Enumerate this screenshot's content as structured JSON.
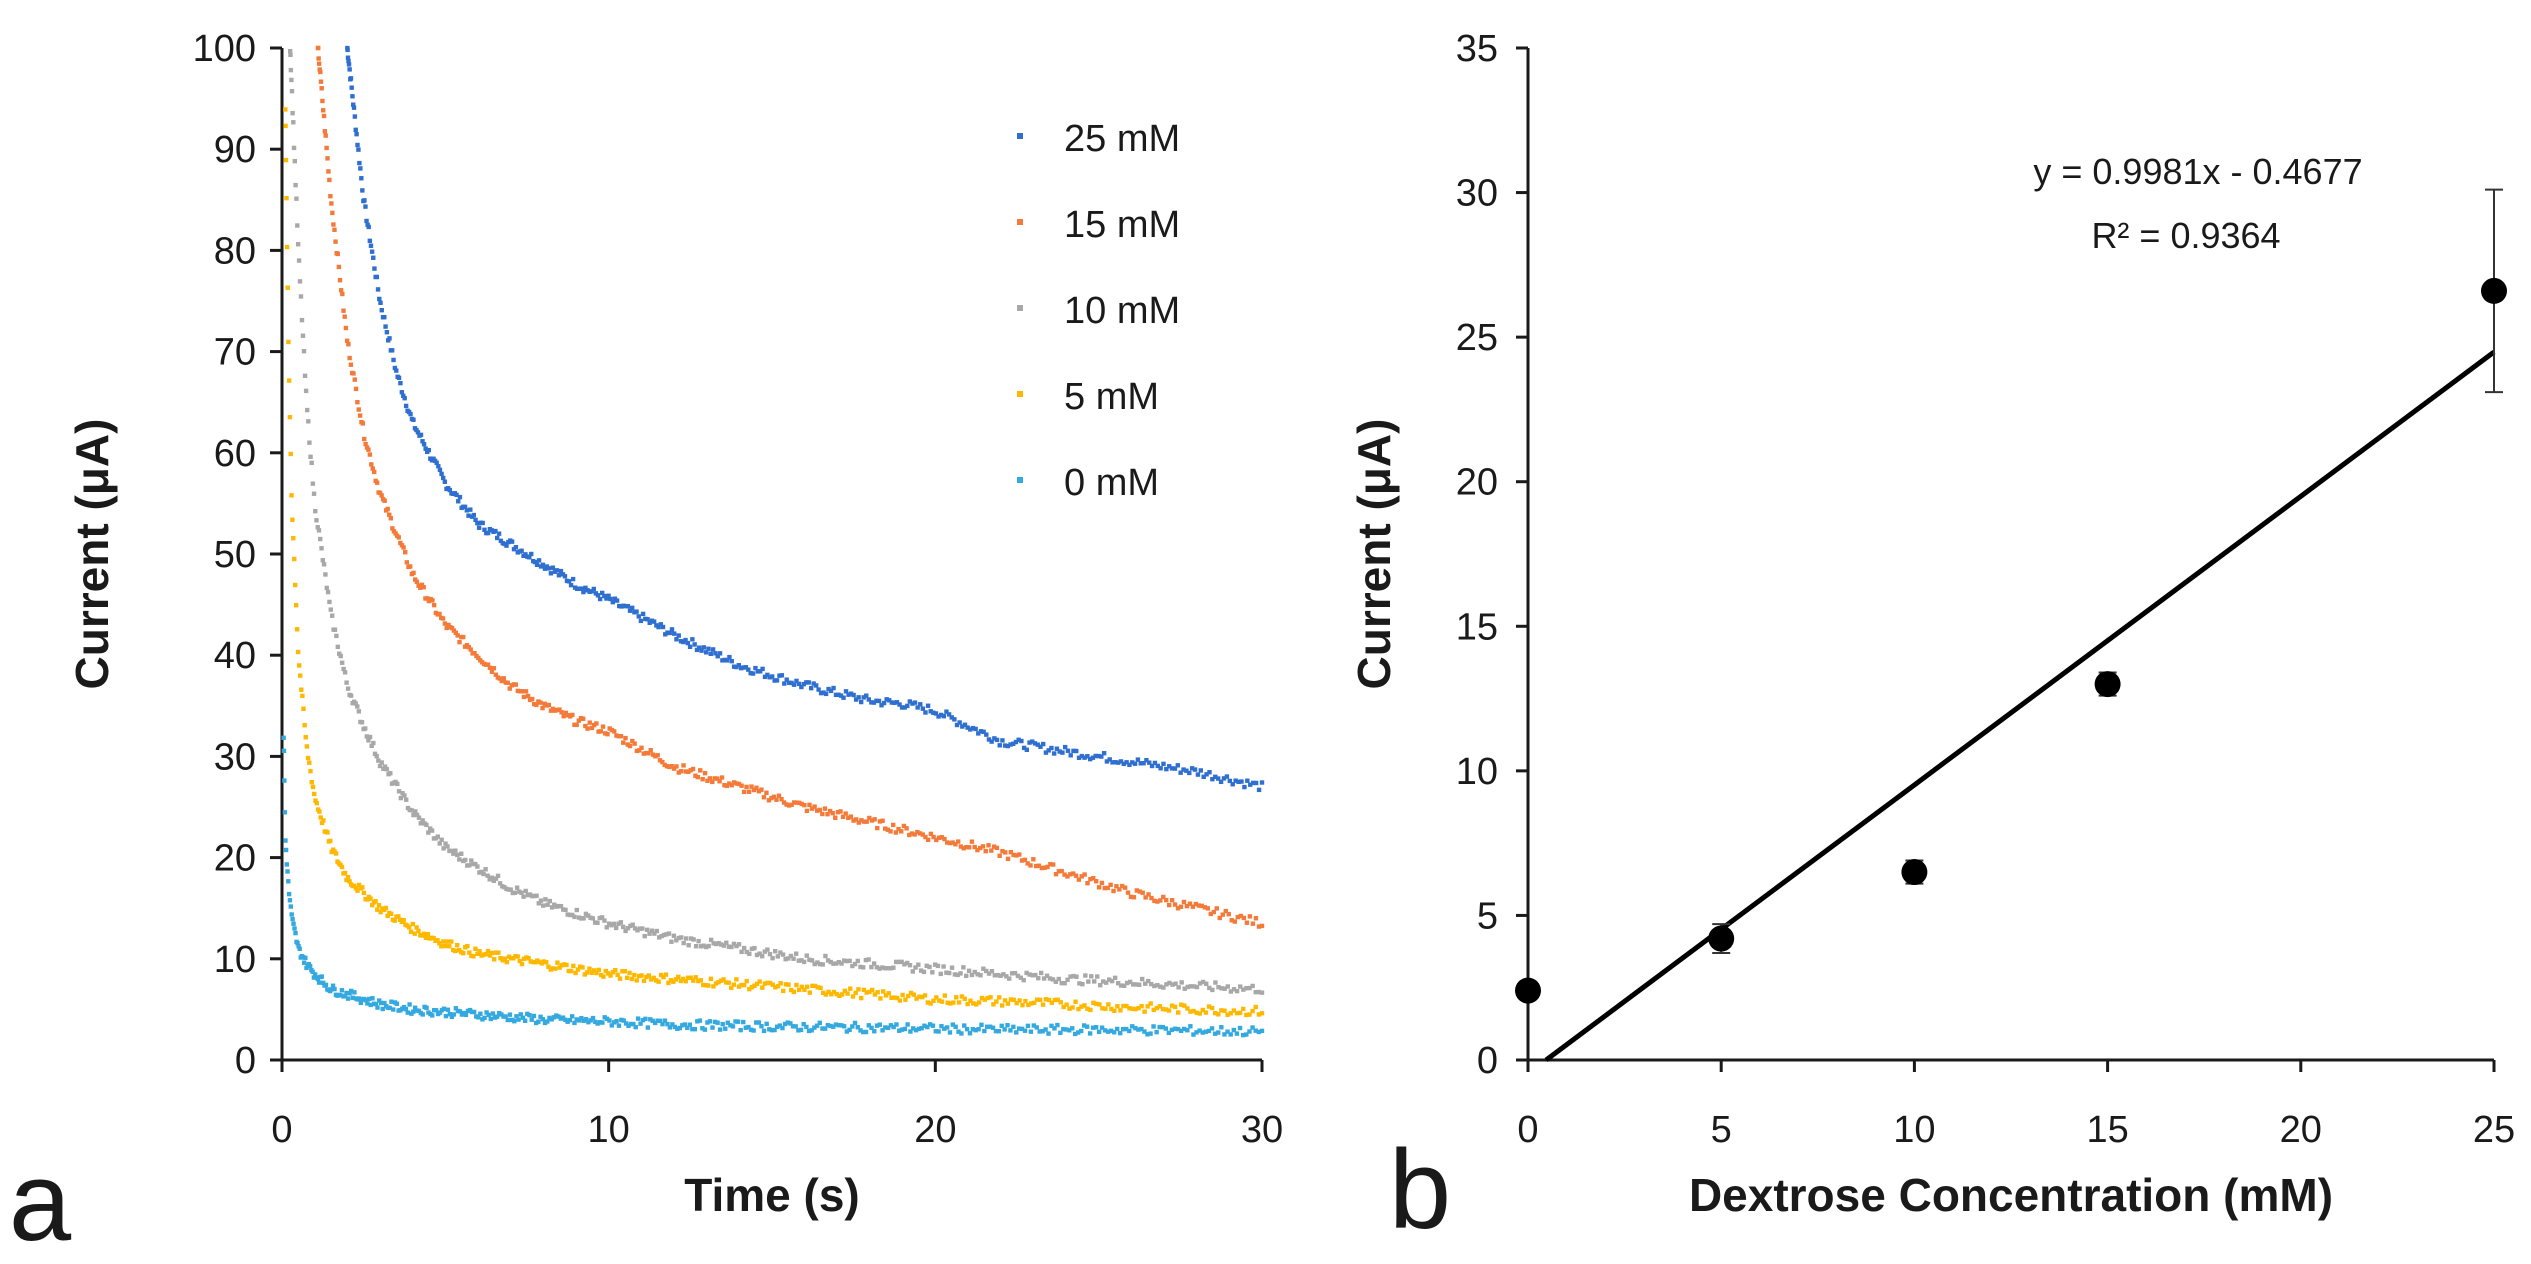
{
  "colors": {
    "s25": "#2f6fd0",
    "s15": "#f47a3a",
    "s10": "#a8a8a8",
    "s5": "#ffb800",
    "s0": "#34a9e0",
    "axis": "#1a1a1a",
    "marker": "#000000"
  },
  "chart_data": [
    {
      "type": "scatter",
      "panel_label": "a",
      "xlabel": "Time (s)",
      "ylabel": "Current (μA)",
      "xlim": [
        0,
        30
      ],
      "ylim": [
        0,
        100
      ],
      "x_ticks": [
        "0",
        "10",
        "20",
        "30"
      ],
      "y_ticks": [
        "0",
        "10",
        "20",
        "30",
        "40",
        "50",
        "60",
        "70",
        "80",
        "90",
        "100"
      ],
      "legend_position": "top-right",
      "series": [
        {
          "name": "25 mM",
          "color_key": "s25",
          "x": [
            2.0,
            2.5,
            3,
            3.5,
            4,
            5,
            6,
            7,
            8,
            9,
            10,
            12,
            14,
            16,
            18,
            19,
            20,
            22,
            24,
            26,
            28,
            30
          ],
          "values": [
            100,
            85,
            75,
            68,
            63,
            57,
            53,
            51,
            49,
            47,
            45.5,
            42,
            39,
            37,
            35.5,
            35.2,
            34.5,
            31.5,
            30.5,
            29.5,
            28.5,
            27
          ]
        },
        {
          "name": "15 mM",
          "color_key": "s15",
          "x": [
            1.1,
            1.5,
            2,
            2.5,
            3,
            4,
            5,
            6,
            7,
            8,
            9,
            10,
            12,
            14,
            16,
            18,
            20,
            22,
            24,
            26,
            28,
            30
          ],
          "values": [
            100,
            85,
            71,
            62,
            56,
            48,
            43,
            40,
            37,
            35,
            33.5,
            32.5,
            29,
            27,
            25,
            23.5,
            22,
            20.5,
            18.5,
            16.5,
            15,
            13.5
          ]
        },
        {
          "name": "10 mM",
          "color_key": "s10",
          "x": [
            0.25,
            0.5,
            0.75,
            1,
            1.5,
            2,
            2.5,
            3,
            4,
            5,
            6,
            7,
            8,
            10,
            12,
            14,
            16,
            18,
            20,
            22,
            24,
            26,
            28,
            30
          ],
          "values": [
            100,
            80,
            65,
            55,
            44,
            37,
            33,
            29.5,
            24.5,
            21,
            19,
            17,
            15.5,
            13.5,
            12,
            11,
            10,
            9.5,
            9,
            8.5,
            8,
            7.7,
            7.3,
            7
          ]
        },
        {
          "name": "5 mM",
          "color_key": "s5",
          "x": [
            0.1,
            0.2,
            0.3,
            0.5,
            0.75,
            1,
            1.5,
            2,
            3,
            4,
            5,
            6,
            8,
            10,
            12,
            14,
            16,
            18,
            20,
            22,
            24,
            26,
            28,
            30
          ],
          "values": [
            94,
            70,
            55,
            40,
            31,
            26,
            21,
            18,
            15,
            13,
            11.5,
            10.5,
            9.5,
            8.5,
            8,
            7.5,
            7,
            6.5,
            6,
            5.8,
            5.5,
            5.2,
            5,
            4.8
          ]
        },
        {
          "name": "0 mM",
          "color_key": "s0",
          "x": [
            0.05,
            0.1,
            0.2,
            0.3,
            0.5,
            0.75,
            1,
            1.5,
            2,
            3,
            4,
            6,
            8,
            10,
            12,
            15,
            18,
            20,
            22,
            25,
            28,
            30
          ],
          "values": [
            32,
            22,
            17,
            14,
            11,
            9.5,
            8.5,
            7,
            6.5,
            5.5,
            5,
            4.5,
            4,
            3.8,
            3.5,
            3.3,
            3.2,
            3.1,
            3,
            3,
            2.9,
            2.8
          ]
        }
      ]
    },
    {
      "type": "scatter",
      "panel_label": "b",
      "xlabel": "Dextrose Concentration (mM)",
      "ylabel": "Current (μA)",
      "xlim": [
        0,
        25
      ],
      "ylim": [
        0,
        35
      ],
      "x_ticks": [
        "0",
        "5",
        "10",
        "15",
        "20",
        "25"
      ],
      "y_ticks": [
        "0",
        "5",
        "10",
        "15",
        "20",
        "25",
        "30",
        "35"
      ],
      "points": [
        {
          "x": 0,
          "y": 2.4,
          "err": 0.3
        },
        {
          "x": 5,
          "y": 4.2,
          "err": 0.5
        },
        {
          "x": 10,
          "y": 6.5,
          "err": 0.4
        },
        {
          "x": 15,
          "y": 13.0,
          "err": 0.4
        },
        {
          "x": 25,
          "y": 26.6,
          "err": 3.5
        }
      ],
      "trendline": {
        "slope": 0.9981,
        "intercept": -0.4677
      },
      "equation": "y = 0.9981x - 0.4677",
      "r2_label": "R² = 0.9364"
    }
  ]
}
